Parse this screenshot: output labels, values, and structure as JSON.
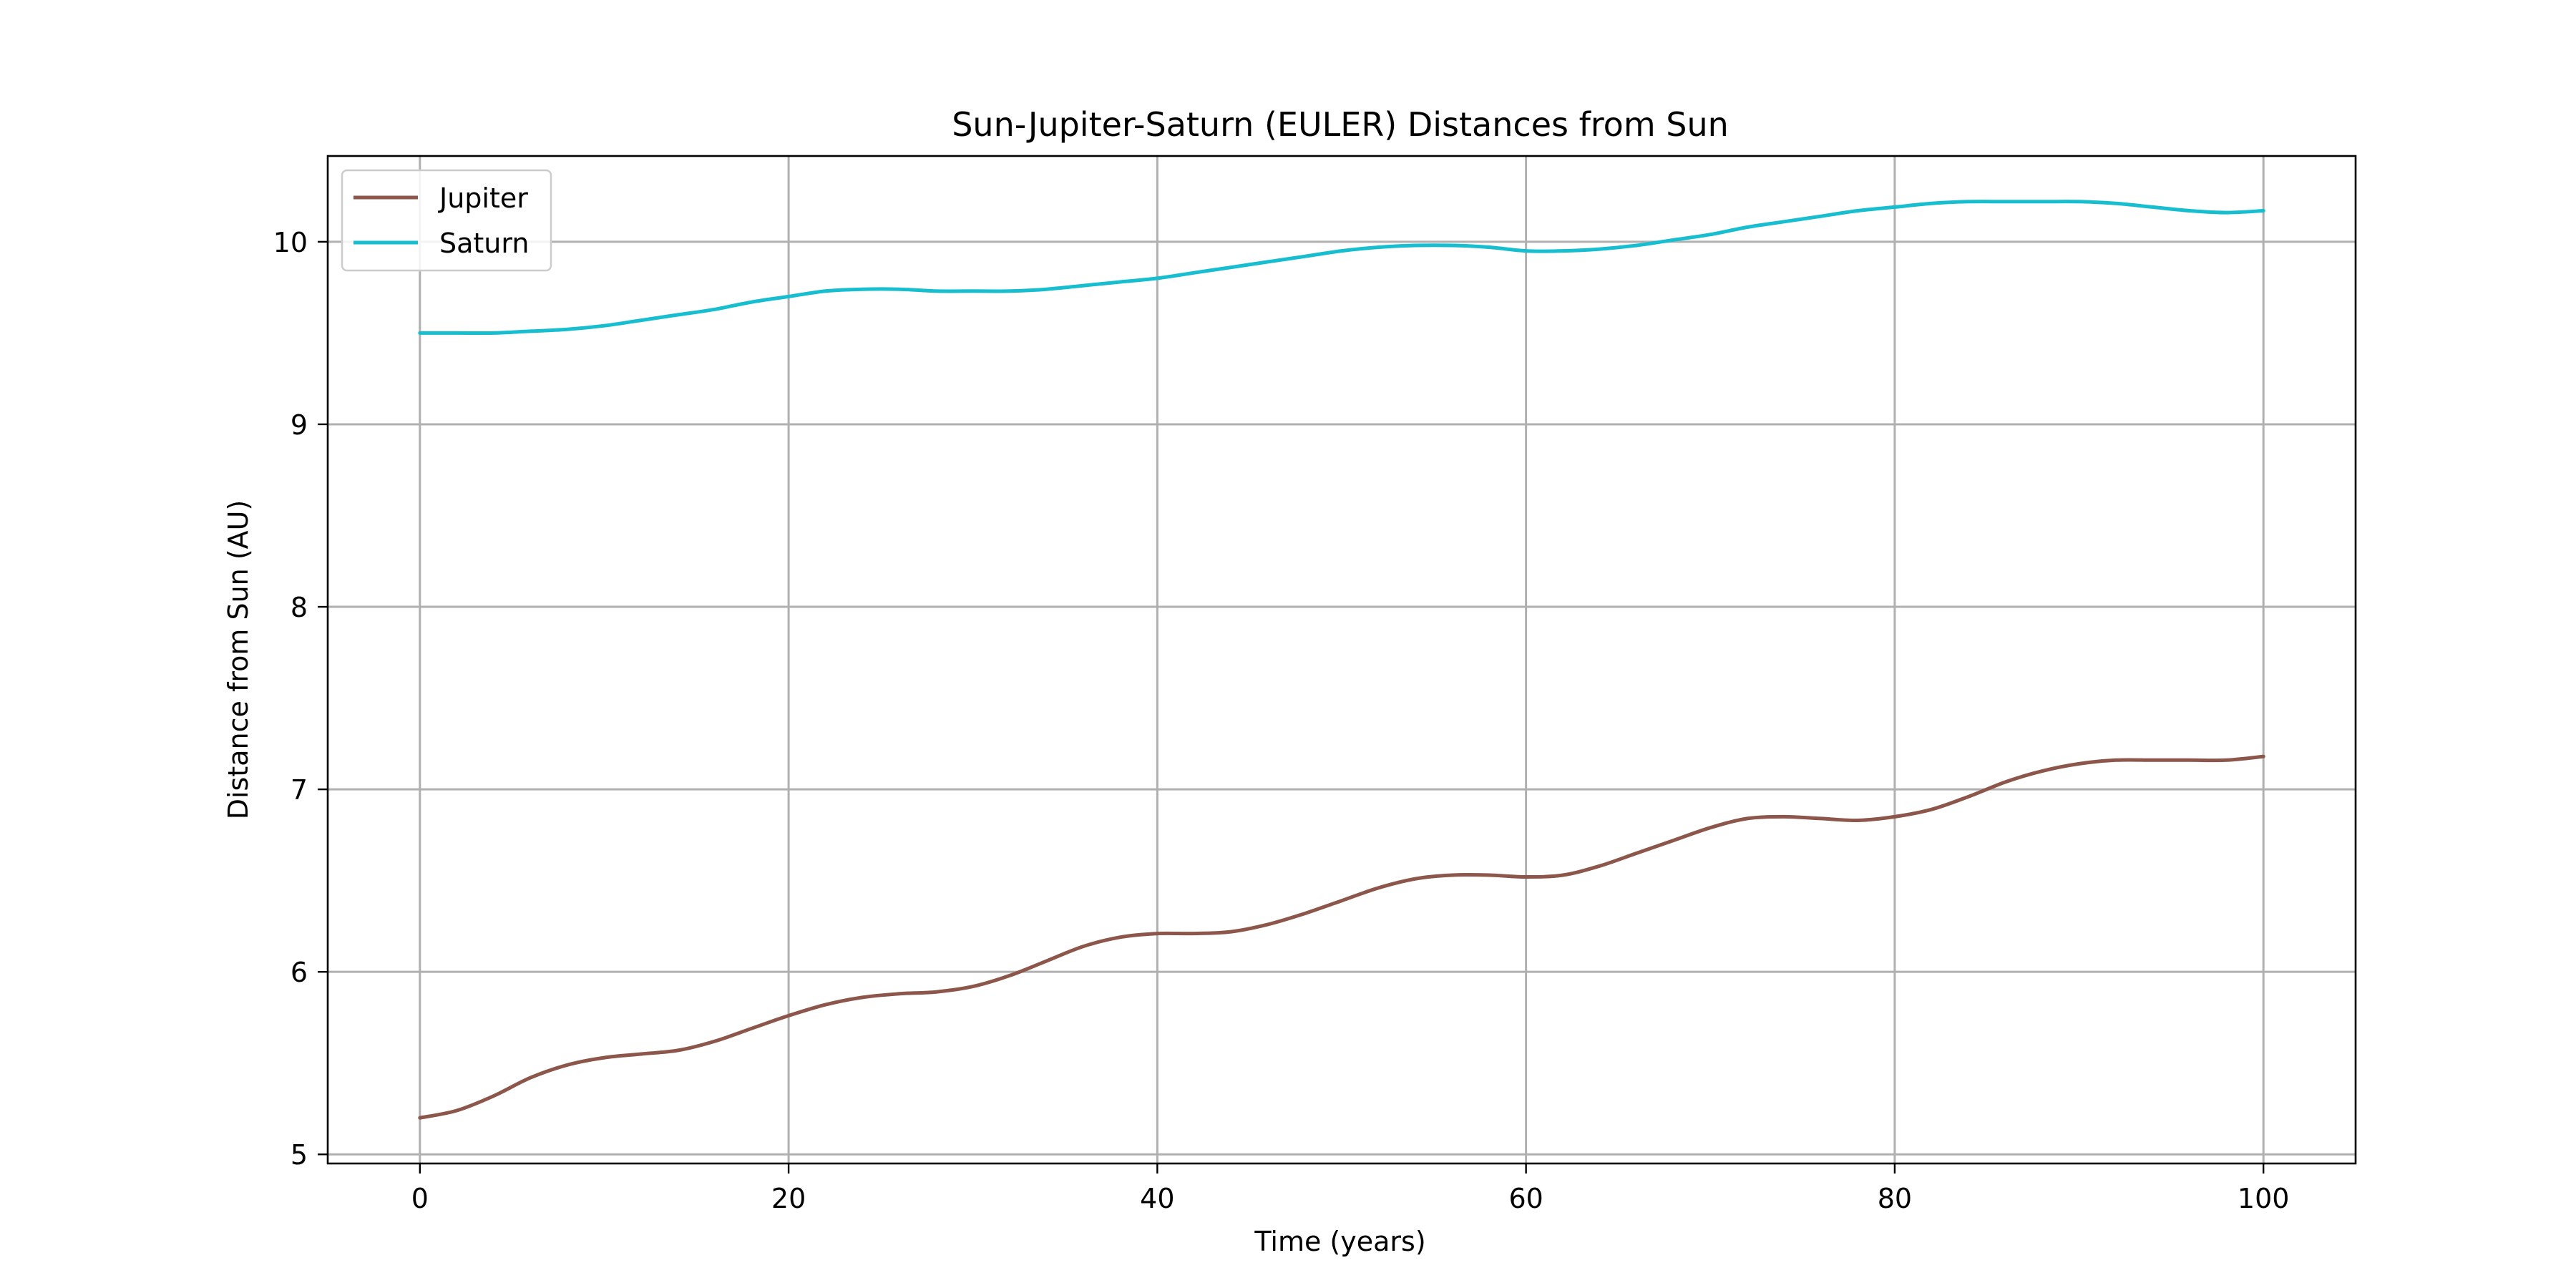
{
  "chart_data": {
    "type": "line",
    "title": "Sun-Jupiter-Saturn (EULER) Distances from Sun",
    "xlabel": "Time (years)",
    "ylabel": "Distance from Sun (AU)",
    "xlim": [
      -5,
      105
    ],
    "ylim": [
      4.95,
      10.47
    ],
    "xticks": [
      0,
      20,
      40,
      60,
      80,
      100
    ],
    "yticks": [
      5,
      6,
      7,
      8,
      9,
      10
    ],
    "grid": true,
    "legend_position": "top-left",
    "series": [
      {
        "name": "Jupiter",
        "color": "#8c564b",
        "x": [
          0,
          2,
          4,
          6,
          8,
          10,
          12,
          14,
          16,
          18,
          20,
          22,
          24,
          26,
          28,
          30,
          32,
          34,
          36,
          38,
          40,
          42,
          44,
          46,
          48,
          50,
          52,
          54,
          56,
          58,
          60,
          62,
          64,
          66,
          68,
          70,
          72,
          74,
          76,
          78,
          80,
          82,
          84,
          86,
          88,
          90,
          92,
          94,
          96,
          98,
          100
        ],
        "y": [
          5.2,
          5.24,
          5.32,
          5.42,
          5.49,
          5.53,
          5.55,
          5.57,
          5.62,
          5.69,
          5.76,
          5.82,
          5.86,
          5.88,
          5.89,
          5.92,
          5.98,
          6.06,
          6.14,
          6.19,
          6.21,
          6.21,
          6.22,
          6.26,
          6.32,
          6.39,
          6.46,
          6.51,
          6.53,
          6.53,
          6.52,
          6.53,
          6.58,
          6.65,
          6.72,
          6.79,
          6.84,
          6.85,
          6.84,
          6.83,
          6.85,
          6.89,
          6.96,
          7.04,
          7.1,
          7.14,
          7.16,
          7.16,
          7.16,
          7.16,
          7.18
        ]
      },
      {
        "name": "Saturn",
        "color": "#17becf",
        "x": [
          0,
          2,
          4,
          6,
          8,
          10,
          12,
          14,
          16,
          18,
          20,
          22,
          24,
          26,
          28,
          30,
          32,
          34,
          36,
          38,
          40,
          42,
          44,
          46,
          48,
          50,
          52,
          54,
          56,
          58,
          60,
          62,
          64,
          66,
          68,
          70,
          72,
          74,
          76,
          78,
          80,
          82,
          84,
          86,
          88,
          90,
          92,
          94,
          96,
          98,
          100
        ],
        "y": [
          9.5,
          9.5,
          9.5,
          9.51,
          9.52,
          9.54,
          9.57,
          9.6,
          9.63,
          9.67,
          9.7,
          9.73,
          9.74,
          9.74,
          9.73,
          9.73,
          9.73,
          9.74,
          9.76,
          9.78,
          9.8,
          9.83,
          9.86,
          9.89,
          9.92,
          9.95,
          9.97,
          9.98,
          9.98,
          9.97,
          9.95,
          9.95,
          9.96,
          9.98,
          10.01,
          10.04,
          10.08,
          10.11,
          10.14,
          10.17,
          10.19,
          10.21,
          10.22,
          10.22,
          10.22,
          10.22,
          10.21,
          10.19,
          10.17,
          10.16,
          10.17
        ]
      }
    ]
  }
}
